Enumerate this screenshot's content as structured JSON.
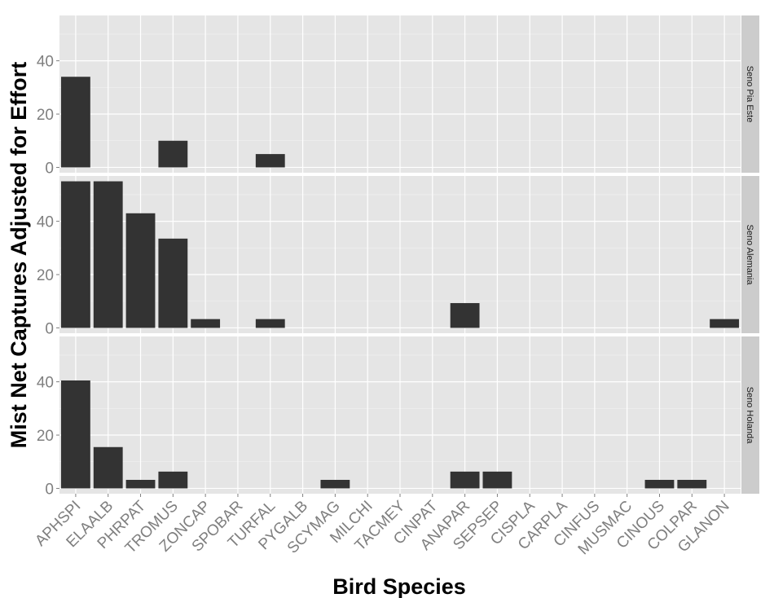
{
  "chart_data": {
    "type": "bar",
    "facet": "rows",
    "xlabel": "Bird Species",
    "ylabel": "Mist Net Captures Adjusted for Effort",
    "categories": [
      "APHSPI",
      "ELAALB",
      "PHRPAT",
      "TROMUS",
      "ZONCAP",
      "SPOBAR",
      "TURFAL",
      "PYGALB",
      "SCYMAG",
      "MILCHI",
      "TACMEY",
      "CINPAT",
      "ANAPAR",
      "SEPSEP",
      "CISPLA",
      "CARPLA",
      "CINFUS",
      "MUSMAC",
      "CINOUS",
      "COLPAR",
      "GLANON"
    ],
    "ylim": [
      -2,
      57
    ],
    "yticks": [
      0,
      20,
      40
    ],
    "grid": true,
    "bar_color": "#333333",
    "panel_background": "#e5e5e5",
    "strip_background": "#cccccc",
    "panels": [
      {
        "name": "Seno Pia Este",
        "values": [
          34,
          0,
          0,
          10,
          0,
          0,
          5,
          0,
          0,
          0,
          0,
          0,
          0,
          0,
          0,
          0,
          0,
          0,
          0,
          0,
          0
        ]
      },
      {
        "name": "Seno Alemania",
        "values": [
          55,
          55,
          43,
          33.5,
          3.3,
          0,
          3.3,
          0,
          0,
          0,
          0,
          0,
          9.3,
          0,
          0,
          0,
          0,
          0,
          0,
          0,
          3.3
        ]
      },
      {
        "name": "Seno Holanda",
        "values": [
          40.5,
          15.5,
          3.2,
          6.3,
          0,
          0,
          0,
          0,
          3.2,
          0,
          0,
          0,
          6.3,
          6.3,
          0,
          0,
          0,
          0,
          3.2,
          3.2,
          0
        ]
      }
    ]
  }
}
